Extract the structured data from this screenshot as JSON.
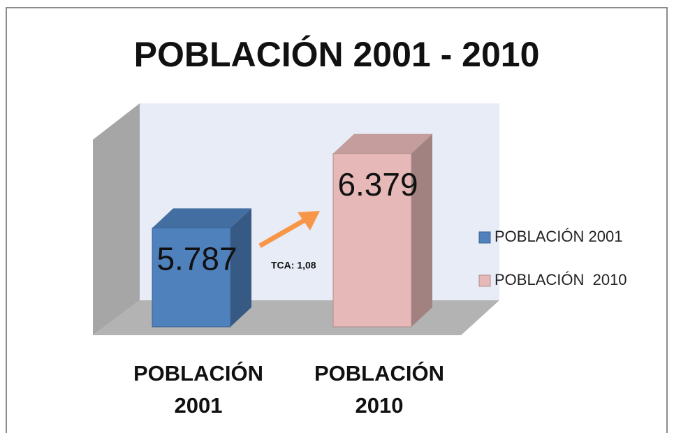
{
  "chart_data": {
    "type": "bar3d",
    "title": "POBLACIÓN 2001 - 2010",
    "categories": [
      "POBLACIÓN 2001",
      "POBLACIÓN 2010"
    ],
    "series": [
      {
        "name": "POBLACIÓN 2001",
        "color": "#4f81bd",
        "values": [
          5787,
          null
        ],
        "value_labels": [
          "5.787",
          null
        ]
      },
      {
        "name": "POBLACIÓN  2010",
        "color": "#e6b9b8",
        "values": [
          null,
          6379
        ],
        "value_labels": [
          null,
          "6.379"
        ]
      }
    ],
    "ylim": [
      5000,
      6600
    ],
    "annotation": "TCA: 1,08",
    "legend": "right"
  }
}
